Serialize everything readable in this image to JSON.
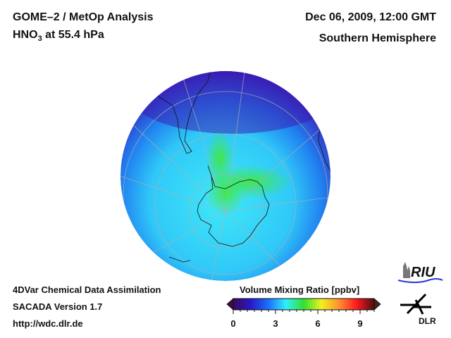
{
  "header": {
    "title_line1": "GOME–2 / MetOp Analysis",
    "title_species": "HNO",
    "title_subscript": "3",
    "title_level": " at 55.4 hPa",
    "date": "Dec 06, 2009, 12:00 GMT",
    "region": "Southern Hemisphere"
  },
  "footer": {
    "line1": "4DVar Chemical Data Assimilation",
    "line2": "SACADA Version 1.7",
    "line3": "http://wdc.dlr.de"
  },
  "colorbar": {
    "title": "Volume Mixing Ratio [ppbv]",
    "min": 0,
    "max": 10,
    "ticks": [
      "0",
      "3",
      "6",
      "9"
    ],
    "colors": [
      "#3a0a5a",
      "#2a18c8",
      "#1a70ff",
      "#30f0f8",
      "#30e030",
      "#f0f020",
      "#ff9030",
      "#ff1820",
      "#4a1010"
    ]
  },
  "logos": {
    "riu": "RIU",
    "dlr": "DLR"
  },
  "map": {
    "projection": "orthographic",
    "hemisphere": "south",
    "field_colors": {
      "low": "#3a18b0",
      "mid": "#2890f0",
      "high": "#36e6f6",
      "peak": "#40e040"
    }
  }
}
